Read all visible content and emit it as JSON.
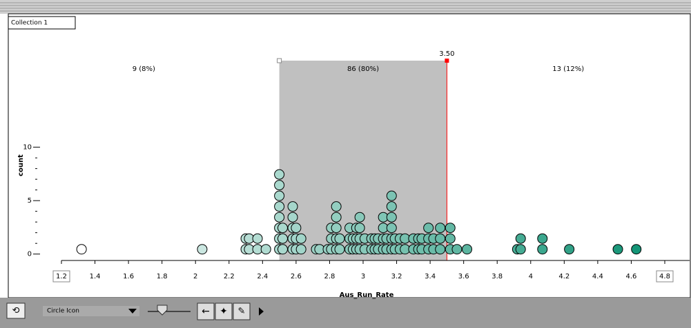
{
  "window": {
    "tab": "Collection 1"
  },
  "chart_data": {
    "type": "dotplot",
    "xlabel": "Aus_Run_Rate",
    "ylabel": "count",
    "values": [
      1.32,
      2.04,
      2.3,
      2.3,
      2.32,
      2.32,
      2.37,
      2.37,
      2.42,
      2.5,
      2.5,
      2.5,
      2.5,
      2.5,
      2.5,
      2.5,
      2.5,
      2.52,
      2.52,
      2.52,
      2.58,
      2.58,
      2.58,
      2.58,
      2.58,
      2.6,
      2.6,
      2.6,
      2.63,
      2.63,
      2.72,
      2.74,
      2.79,
      2.81,
      2.81,
      2.81,
      2.84,
      2.84,
      2.84,
      2.84,
      2.84,
      2.86,
      2.86,
      2.92,
      2.92,
      2.92,
      2.94,
      2.94,
      2.96,
      2.96,
      2.96,
      2.98,
      2.98,
      2.98,
      2.98,
      3.01,
      3.01,
      3.05,
      3.05,
      3.07,
      3.07,
      3.09,
      3.09,
      3.12,
      3.12,
      3.12,
      3.12,
      3.14,
      3.14,
      3.17,
      3.17,
      3.17,
      3.17,
      3.17,
      3.17,
      3.19,
      3.19,
      3.22,
      3.22,
      3.25,
      3.25,
      3.3,
      3.3,
      3.33,
      3.33,
      3.35,
      3.35,
      3.39,
      3.39,
      3.39,
      3.42,
      3.42,
      3.46,
      3.46,
      3.46,
      3.52,
      3.52,
      3.52,
      3.56,
      3.62,
      3.92,
      3.94,
      3.94,
      4.07,
      4.07,
      4.23,
      4.52,
      4.63
    ],
    "color_range": [
      "#ffffff",
      "#139476"
    ],
    "xlim": [
      1.2,
      4.8
    ],
    "xticks": [
      1.2,
      1.4,
      1.6,
      1.8,
      2,
      2.2,
      2.4,
      2.6,
      2.8,
      3,
      3.2,
      3.4,
      3.6,
      3.8,
      4,
      4.2,
      4.4,
      4.6,
      4.8
    ],
    "ylim": [
      -0.6,
      18.1
    ],
    "yticks": [
      0,
      5,
      10
    ],
    "y_minor_ticks": [
      1,
      2,
      3,
      4,
      6,
      7,
      8,
      9
    ],
    "dividers": [
      2.5,
      3.5
    ],
    "divider_label": "3.50",
    "region_labels": [
      "9 (8%)",
      "86 (80%)",
      "13 (12%)"
    ]
  },
  "toolbar": {
    "icon_menu": "Circle Icon"
  }
}
